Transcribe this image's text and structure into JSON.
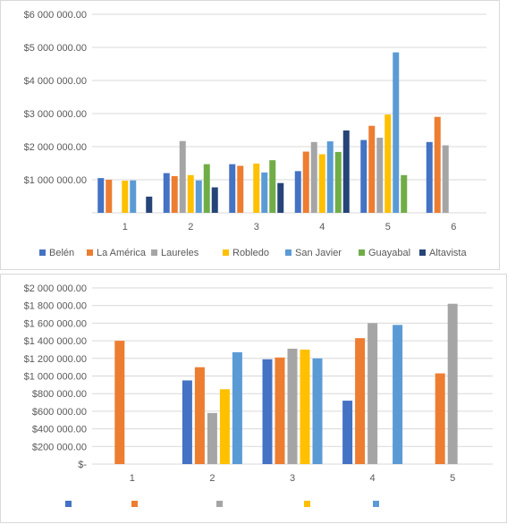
{
  "chart_data": [
    {
      "type": "bar",
      "categories": [
        "1",
        "2",
        "3",
        "4",
        "5",
        "6"
      ],
      "ylim": [
        0,
        6000000
      ],
      "ytick_values": [
        1000000,
        2000000,
        3000000,
        4000000,
        5000000,
        6000000
      ],
      "ytick_labels": [
        "$1 000 000.00",
        "$2 000 000.00",
        "$3 000 000.00",
        "$4 000 000.00",
        "$5 000 000.00",
        "$6 000 000.00"
      ],
      "grid": true,
      "legend_position": "bottom",
      "series": [
        {
          "name": "Belén",
          "color": "#4472c4",
          "values": [
            1050000,
            1200000,
            1470000,
            1260000,
            2200000,
            2140000
          ]
        },
        {
          "name": "La América",
          "color": "#ed7d31",
          "values": [
            1000000,
            1110000,
            1420000,
            1850000,
            2630000,
            2900000
          ]
        },
        {
          "name": "Laureles",
          "color": "#a5a5a5",
          "values": [
            null,
            2170000,
            null,
            2140000,
            2270000,
            2040000
          ]
        },
        {
          "name": "Robledo",
          "color": "#ffc000",
          "values": [
            970000,
            1140000,
            1490000,
            1770000,
            2970000,
            null
          ]
        },
        {
          "name": "San Javier",
          "color": "#5b9bd5",
          "values": [
            980000,
            980000,
            1220000,
            2160000,
            4850000,
            null
          ]
        },
        {
          "name": "Guayabal",
          "color": "#70ad47",
          "values": [
            null,
            1470000,
            1590000,
            1840000,
            1140000,
            null
          ]
        },
        {
          "name": "Altavista",
          "color": "#264478",
          "values": [
            490000,
            770000,
            900000,
            2490000,
            null,
            null
          ]
        }
      ]
    },
    {
      "type": "bar",
      "categories": [
        "1",
        "2",
        "3",
        "4",
        "5"
      ],
      "ylim": [
        0,
        2000000
      ],
      "ytick_values": [
        0,
        200000,
        400000,
        600000,
        800000,
        1000000,
        1200000,
        1400000,
        1600000,
        1800000,
        2000000
      ],
      "ytick_labels": [
        "$-",
        "$200 000.00",
        "$400 000.00",
        "$600 000.00",
        "$800 000.00",
        "$1 000 000.00",
        "$1 200 000.00",
        "$1 400 000.00",
        "$1 600 000.00",
        "$1 800 000.00",
        "$2 000 000.00"
      ],
      "grid": true,
      "legend_position": "bottom",
      "series": [
        {
          "color": "#4472c4",
          "values": [
            null,
            950000,
            1190000,
            720000,
            null
          ]
        },
        {
          "color": "#ed7d31",
          "values": [
            1400000,
            1100000,
            1210000,
            1430000,
            1030000
          ]
        },
        {
          "color": "#a5a5a5",
          "values": [
            null,
            580000,
            1310000,
            1600000,
            1820000
          ]
        },
        {
          "color": "#ffc000",
          "values": [
            null,
            850000,
            1300000,
            null,
            null
          ]
        },
        {
          "color": "#5b9bd5",
          "values": [
            null,
            1270000,
            1200000,
            1580000,
            null
          ]
        }
      ]
    }
  ]
}
